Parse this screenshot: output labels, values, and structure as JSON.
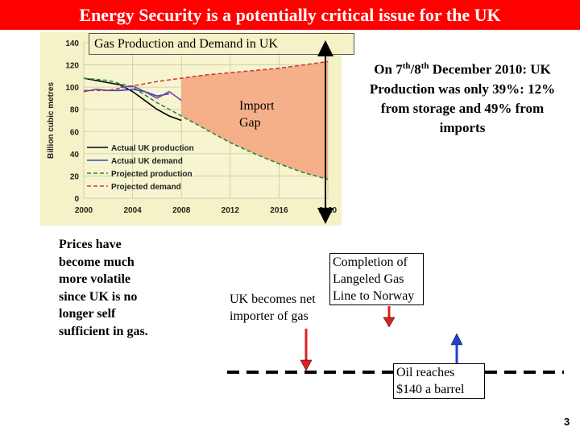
{
  "title": "Energy Security is a potentially critical issue for the UK",
  "chart": {
    "title": "Gas Production and Demand in UK",
    "annotation": [
      "Import",
      "Gap"
    ]
  },
  "chart_data": {
    "type": "line",
    "title": "Gas Production and Demand in UK",
    "ylabel": "Billion cubic metres",
    "xlabel": "",
    "xlim": [
      2000,
      2020
    ],
    "ylim": [
      0,
      140
    ],
    "x_ticks": [
      "2000",
      "2004",
      "2008",
      "2012",
      "2016",
      "2020"
    ],
    "y_ticks": [
      "0",
      "20",
      "40",
      "60",
      "80",
      "100",
      "120",
      "140"
    ],
    "grid": true,
    "legend_position": "bottom-left",
    "series": [
      {
        "name": "Actual UK production",
        "color": "#000000",
        "style": "solid",
        "x": [
          2000,
          2001,
          2002,
          2003,
          2004,
          2005,
          2006,
          2007,
          2008
        ],
        "y": [
          108,
          106,
          104,
          102,
          96,
          88,
          80,
          74,
          70
        ]
      },
      {
        "name": "Actual UK demand",
        "color": "#2e4fb0",
        "style": "solid",
        "x": [
          2000,
          2001,
          2002,
          2003,
          2004,
          2005,
          2006,
          2007
        ],
        "y": [
          96,
          98,
          97,
          97,
          98,
          96,
          92,
          94
        ]
      },
      {
        "name": "Projected production",
        "color": "#2a8a3a",
        "style": "dashed",
        "x": [
          2000,
          2002,
          2004,
          2006,
          2008,
          2010,
          2012,
          2014,
          2016,
          2018,
          2020
        ],
        "y": [
          108,
          106,
          100,
          86,
          74,
          62,
          50,
          40,
          31,
          23,
          17
        ]
      },
      {
        "name": "Projected demand",
        "color": "#d33a3a",
        "style": "dashed",
        "x": [
          2000,
          2002,
          2004,
          2006,
          2008,
          2010,
          2012,
          2014,
          2016,
          2018,
          2020
        ],
        "y": [
          97,
          97,
          101,
          105,
          108,
          111,
          113,
          115,
          117,
          120,
          123
        ]
      },
      {
        "name": "",
        "color": "#7a3fa8",
        "style": "solid",
        "x": [
          2003,
          2004,
          2005,
          2006,
          2007,
          2008
        ],
        "y": [
          100,
          101,
          96,
          90,
          96,
          88
        ]
      }
    ],
    "gap_fill_color": "#f4a882"
  },
  "right_note": {
    "line1_a": "On 7",
    "sup1": "th",
    "line1_b": "/8",
    "sup2": "th",
    "line1_c": " December 2010: UK",
    "line2": "Production was only 39%: 12%",
    "line3": "from storage and 49% from",
    "line4": "imports"
  },
  "left_note": [
    "Prices have",
    "become much",
    "more volatile",
    "since UK is no",
    "longer self",
    "sufficient in gas."
  ],
  "timeline": {
    "net_importer": [
      "UK becomes net",
      "importer of gas"
    ],
    "langeled": [
      "Completion of",
      "Langeled Gas",
      "Line to Norway"
    ],
    "oil": [
      "Oil reaches",
      "$140 a barrel"
    ],
    "arrow_down_color": "#e02020",
    "arrow_up_color": "#2040d0"
  },
  "page_number": "3"
}
